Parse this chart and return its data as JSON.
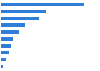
{
  "values": [
    20410,
    10980,
    9290,
    5880,
    4540,
    3060,
    2560,
    1870,
    1210,
    570
  ],
  "bar_color": "#2f7ed8",
  "background_color": "#ffffff",
  "grid_color": "#e0e0e0",
  "figsize": [
    1.0,
    0.71
  ],
  "dpi": 100,
  "bar_height": 0.45,
  "xlim_factor": 1.18
}
